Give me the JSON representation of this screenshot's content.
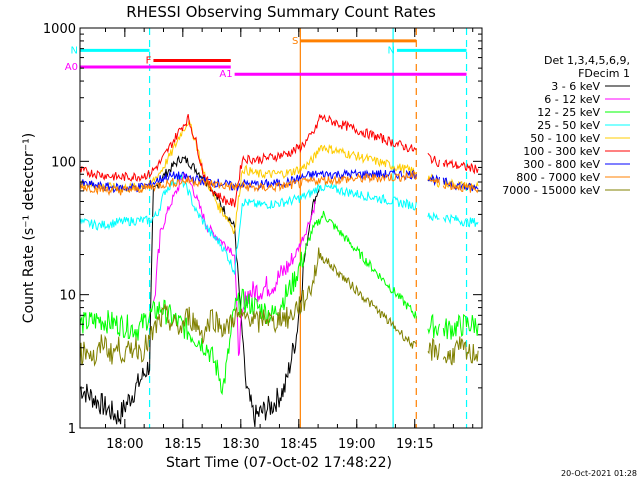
{
  "chart_data": {
    "type": "line",
    "title": "RHESSI Observing Summary Count Rates",
    "xlabel": "Start Time (07-Oct-02 17:48:22)",
    "ylabel": "Count Rate (s⁻¹ detector⁻¹)",
    "yscale": "log",
    "ylim": [
      1,
      1000
    ],
    "xlim_minutes": [
      0,
      104
    ],
    "x_ticks": [
      "18:00",
      "18:15",
      "18:30",
      "18:45",
      "19:00",
      "19:15"
    ],
    "y_ticks": [
      "1",
      "10",
      "100",
      "1000"
    ],
    "timestamp": "20-Oct-2021 01:28",
    "legend_header": [
      "Det 1,3,4,5,6,9,",
      "FDecim 1"
    ],
    "legend_position": "right",
    "data_gaps_minutes": [
      [
        87,
        90
      ],
      [
        93,
        94
      ]
    ],
    "series": [
      {
        "name": "3 - 6 keV",
        "color": "#000000",
        "points": [
          [
            0,
            2
          ],
          [
            10,
            1.2
          ],
          [
            18,
            3
          ],
          [
            19,
            60
          ],
          [
            22,
            80
          ],
          [
            26,
            105
          ],
          [
            28,
            100
          ],
          [
            33,
            70
          ],
          [
            36,
            50
          ],
          [
            38,
            40
          ],
          [
            40,
            32
          ],
          [
            43,
            2
          ],
          [
            45,
            1.2
          ],
          [
            50,
            1.5
          ],
          [
            53,
            2
          ],
          [
            56,
            5
          ],
          [
            58,
            18
          ],
          [
            59,
            28
          ],
          [
            60,
            45
          ],
          [
            62,
            65
          ]
        ]
      },
      {
        "name": "6 - 12 keV",
        "color": "#ff00ff",
        "points": [
          [
            19,
            8
          ],
          [
            21,
            30
          ],
          [
            23,
            45
          ],
          [
            25,
            60
          ],
          [
            27,
            80
          ],
          [
            29,
            65
          ],
          [
            31,
            45
          ],
          [
            33,
            32
          ],
          [
            36,
            26
          ],
          [
            39,
            22
          ],
          [
            40,
            20
          ],
          [
            41,
            4
          ],
          [
            43,
            10
          ],
          [
            50,
            12
          ],
          [
            55,
            18
          ],
          [
            58,
            28
          ],
          [
            60,
            40
          ],
          [
            61,
            50
          ]
        ]
      },
      {
        "name": "12 - 25 keV",
        "color": "#00ff00",
        "points": [
          [
            0,
            6
          ],
          [
            5,
            6.5
          ],
          [
            10,
            6
          ],
          [
            15,
            5.5
          ],
          [
            18,
            7
          ],
          [
            21,
            8
          ],
          [
            23,
            7
          ],
          [
            26,
            6
          ],
          [
            29,
            5
          ],
          [
            31,
            4.5
          ],
          [
            33,
            4
          ],
          [
            35,
            3
          ],
          [
            36,
            2.5
          ],
          [
            37,
            2
          ],
          [
            38,
            3
          ],
          [
            40,
            8
          ],
          [
            42,
            9
          ],
          [
            46,
            8
          ],
          [
            50,
            7
          ],
          [
            55,
            12
          ],
          [
            58,
            20
          ],
          [
            60,
            30
          ],
          [
            63,
            40
          ],
          [
            89,
            6
          ],
          [
            95,
            5.5
          ],
          [
            100,
            6
          ],
          [
            103,
            6
          ]
        ]
      },
      {
        "name": "25 - 50 keV",
        "color": "#00ffff",
        "points": [
          [
            0,
            35
          ],
          [
            5,
            33
          ],
          [
            10,
            35
          ],
          [
            15,
            36
          ],
          [
            18,
            36
          ],
          [
            20,
            40
          ],
          [
            22,
            60
          ],
          [
            24,
            70
          ],
          [
            26,
            75
          ],
          [
            28,
            60
          ],
          [
            30,
            42
          ],
          [
            32,
            35
          ],
          [
            34,
            28
          ],
          [
            36,
            25
          ],
          [
            38,
            20
          ],
          [
            40,
            15
          ],
          [
            42,
            50
          ],
          [
            46,
            47
          ],
          [
            50,
            48
          ],
          [
            54,
            50
          ],
          [
            57,
            53
          ],
          [
            60,
            58
          ],
          [
            62,
            65
          ],
          [
            89,
            45
          ],
          [
            91,
            38
          ],
          [
            95,
            38
          ],
          [
            100,
            35
          ],
          [
            103,
            35
          ]
        ]
      },
      {
        "name": "50 - 100 keV",
        "color": "#ffcc00",
        "points": [
          [
            0,
            68
          ],
          [
            5,
            65
          ],
          [
            10,
            63
          ],
          [
            15,
            64
          ],
          [
            18,
            66
          ],
          [
            21,
            85
          ],
          [
            24,
            120
          ],
          [
            26,
            160
          ],
          [
            28,
            200
          ],
          [
            30,
            140
          ],
          [
            32,
            80
          ],
          [
            34,
            60
          ],
          [
            36,
            45
          ],
          [
            38,
            38
          ],
          [
            40,
            30
          ],
          [
            42,
            88
          ],
          [
            46,
            80
          ],
          [
            50,
            80
          ],
          [
            54,
            82
          ],
          [
            57,
            88
          ],
          [
            59,
            95
          ],
          [
            61,
            110
          ],
          [
            62,
            130
          ],
          [
            89,
            80
          ],
          [
            92,
            70
          ],
          [
            96,
            68
          ],
          [
            100,
            65
          ],
          [
            103,
            65
          ]
        ]
      },
      {
        "name": "100 - 300 keV",
        "color": "#ff0000",
        "points": [
          [
            0,
            85
          ],
          [
            5,
            80
          ],
          [
            10,
            76
          ],
          [
            15,
            77
          ],
          [
            18,
            80
          ],
          [
            21,
            100
          ],
          [
            24,
            140
          ],
          [
            26,
            175
          ],
          [
            28,
            210
          ],
          [
            30,
            140
          ],
          [
            32,
            80
          ],
          [
            34,
            62
          ],
          [
            36,
            55
          ],
          [
            38,
            50
          ],
          [
            40,
            48
          ],
          [
            42,
            105
          ],
          [
            46,
            103
          ],
          [
            50,
            108
          ],
          [
            54,
            115
          ],
          [
            57,
            128
          ],
          [
            59,
            145
          ],
          [
            61,
            175
          ],
          [
            62,
            215
          ],
          [
            89,
            115
          ],
          [
            92,
            100
          ],
          [
            96,
            95
          ],
          [
            100,
            90
          ],
          [
            103,
            88
          ]
        ]
      },
      {
        "name": "300 - 800 keV",
        "color": "#0000ff",
        "points": [
          [
            0,
            68
          ],
          [
            5,
            65
          ],
          [
            10,
            63
          ],
          [
            15,
            64
          ],
          [
            18,
            66
          ],
          [
            20,
            72
          ],
          [
            22,
            76
          ],
          [
            25,
            78
          ],
          [
            28,
            76
          ],
          [
            31,
            72
          ],
          [
            34,
            70
          ],
          [
            37,
            68
          ],
          [
            40,
            64
          ],
          [
            42,
            68
          ],
          [
            46,
            67
          ],
          [
            50,
            68
          ],
          [
            54,
            70
          ],
          [
            57,
            75
          ],
          [
            59,
            78
          ],
          [
            61,
            80
          ],
          [
            62,
            80
          ],
          [
            89,
            80
          ],
          [
            92,
            72
          ],
          [
            96,
            68
          ],
          [
            100,
            64
          ],
          [
            103,
            62
          ]
        ]
      },
      {
        "name": "800 - 7000 keV",
        "color": "#ff8000",
        "points": [
          [
            0,
            65
          ],
          [
            5,
            62
          ],
          [
            10,
            60
          ],
          [
            15,
            62
          ],
          [
            18,
            64
          ],
          [
            20,
            66
          ],
          [
            22,
            68
          ],
          [
            25,
            70
          ],
          [
            28,
            72
          ],
          [
            31,
            70
          ],
          [
            34,
            68
          ],
          [
            37,
            66
          ],
          [
            40,
            64
          ],
          [
            42,
            65
          ],
          [
            46,
            63
          ],
          [
            50,
            64
          ],
          [
            54,
            66
          ],
          [
            57,
            68
          ],
          [
            59,
            70
          ],
          [
            61,
            72
          ],
          [
            62,
            72
          ],
          [
            89,
            78
          ],
          [
            92,
            70
          ],
          [
            96,
            66
          ],
          [
            100,
            63
          ],
          [
            103,
            62
          ]
        ]
      },
      {
        "name": "7000 - 15000 keV",
        "color": "#808000",
        "points": [
          [
            0,
            3.5
          ],
          [
            2,
            4
          ],
          [
            4,
            3.2
          ],
          [
            6,
            4.5
          ],
          [
            8,
            3.6
          ],
          [
            10,
            4
          ],
          [
            12,
            3.5
          ],
          [
            14,
            4.2
          ],
          [
            16,
            3.8
          ],
          [
            18,
            4.5
          ],
          [
            20,
            6
          ],
          [
            22,
            7
          ],
          [
            24,
            6
          ],
          [
            26,
            5.5
          ],
          [
            28,
            7
          ],
          [
            30,
            6
          ],
          [
            32,
            5
          ],
          [
            34,
            7
          ],
          [
            36,
            6
          ],
          [
            38,
            5.5
          ],
          [
            40,
            7
          ],
          [
            42,
            6.5
          ],
          [
            44,
            7
          ],
          [
            46,
            6
          ],
          [
            48,
            7
          ],
          [
            50,
            6
          ],
          [
            52,
            7
          ],
          [
            54,
            6.5
          ],
          [
            56,
            8
          ],
          [
            58,
            9
          ],
          [
            60,
            12
          ],
          [
            62,
            20
          ],
          [
            89,
            3.5
          ],
          [
            92,
            4
          ],
          [
            95,
            3.3
          ],
          [
            98,
            4
          ],
          [
            101,
            3.5
          ],
          [
            103,
            3.8
          ]
        ]
      }
    ],
    "flag_bars": [
      {
        "label": "N",
        "color": "#00ffff",
        "start": 0,
        "end": 18,
        "value": 680
      },
      {
        "label": "N",
        "color": "#00ffff",
        "start": 82,
        "end": 100,
        "value": 680
      },
      {
        "label": "F",
        "color": "#ff0000",
        "start": 19,
        "end": 39,
        "value": 570
      },
      {
        "label": "A0",
        "color": "#ff00ff",
        "start": 0,
        "end": 39,
        "value": 510
      },
      {
        "label": "A1",
        "color": "#ff00ff",
        "start": 40,
        "end": 100,
        "value": 450
      },
      {
        "label": "S",
        "color": "#ff8000",
        "start": 57,
        "end": 87,
        "value": 800
      }
    ],
    "vertical_lines": [
      {
        "color": "#00ffff",
        "style": "dashed",
        "x": 18
      },
      {
        "color": "#ff8000",
        "style": "solid",
        "x": 57
      },
      {
        "color": "#00ffff",
        "style": "solid",
        "x": 81
      },
      {
        "color": "#ff8000",
        "style": "dashed",
        "x": 87
      },
      {
        "color": "#00ffff",
        "style": "dashed",
        "x": 100
      }
    ]
  }
}
